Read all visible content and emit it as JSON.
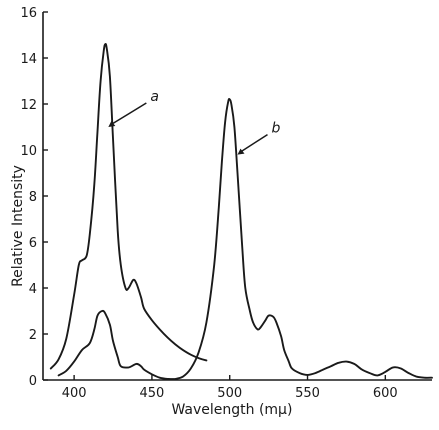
{
  "chart_data": {
    "type": "line",
    "title": "",
    "xlabel": "Wavelength (mμ)",
    "ylabel": "Relative Intensity",
    "xlim": [
      380,
      630
    ],
    "ylim": [
      0,
      16
    ],
    "x_ticks": [
      400,
      450,
      500,
      550,
      600
    ],
    "y_ticks": [
      0,
      2,
      4,
      6,
      8,
      10,
      12,
      14,
      16
    ],
    "grid": false,
    "legend": "none",
    "series": [
      {
        "name": "a",
        "annotation": {
          "x": 422,
          "y": 11.0
        },
        "x": [
          385,
          390,
          395,
          400,
          403,
          405,
          408,
          410,
          413,
          415,
          417,
          419,
          420,
          421,
          423,
          425,
          428,
          430,
          433,
          435,
          438,
          440,
          443,
          445,
          450,
          455,
          460,
          465,
          470,
          475,
          480,
          485
        ],
        "y": [
          0.5,
          0.9,
          1.8,
          3.7,
          5.0,
          5.2,
          5.4,
          6.3,
          8.5,
          10.8,
          13.0,
          14.3,
          14.6,
          14.4,
          13.2,
          10.5,
          6.5,
          5.0,
          4.0,
          4.0,
          4.35,
          4.2,
          3.6,
          3.1,
          2.6,
          2.2,
          1.85,
          1.55,
          1.3,
          1.1,
          0.95,
          0.85
        ]
      },
      {
        "name": "b",
        "annotation": {
          "x": 505,
          "y": 9.8
        },
        "x": [
          390,
          395,
          400,
          405,
          410,
          413,
          415,
          418,
          420,
          423,
          425,
          428,
          430,
          435,
          440,
          443,
          445,
          450,
          455,
          460,
          465,
          470,
          475,
          480,
          485,
          490,
          493,
          495,
          497,
          499,
          500,
          501,
          503,
          505,
          508,
          510,
          513,
          515,
          518,
          520,
          523,
          525,
          528,
          530,
          533,
          535,
          538,
          540,
          545,
          550,
          555,
          560,
          565,
          570,
          575,
          580,
          585,
          590,
          595,
          600,
          605,
          610,
          615,
          620,
          625,
          630
        ],
        "y": [
          0.2,
          0.4,
          0.8,
          1.3,
          1.6,
          2.2,
          2.8,
          3.0,
          2.9,
          2.4,
          1.7,
          1.0,
          0.6,
          0.55,
          0.7,
          0.6,
          0.45,
          0.25,
          0.1,
          0.05,
          0.05,
          0.15,
          0.5,
          1.2,
          2.5,
          5.0,
          7.5,
          9.5,
          11.2,
          12.1,
          12.2,
          12.0,
          11.0,
          9.0,
          5.8,
          4.0,
          3.0,
          2.5,
          2.2,
          2.3,
          2.6,
          2.8,
          2.75,
          2.5,
          1.9,
          1.3,
          0.8,
          0.5,
          0.3,
          0.22,
          0.3,
          0.45,
          0.6,
          0.75,
          0.8,
          0.7,
          0.45,
          0.3,
          0.2,
          0.35,
          0.55,
          0.5,
          0.3,
          0.15,
          0.1,
          0.1
        ]
      }
    ]
  }
}
